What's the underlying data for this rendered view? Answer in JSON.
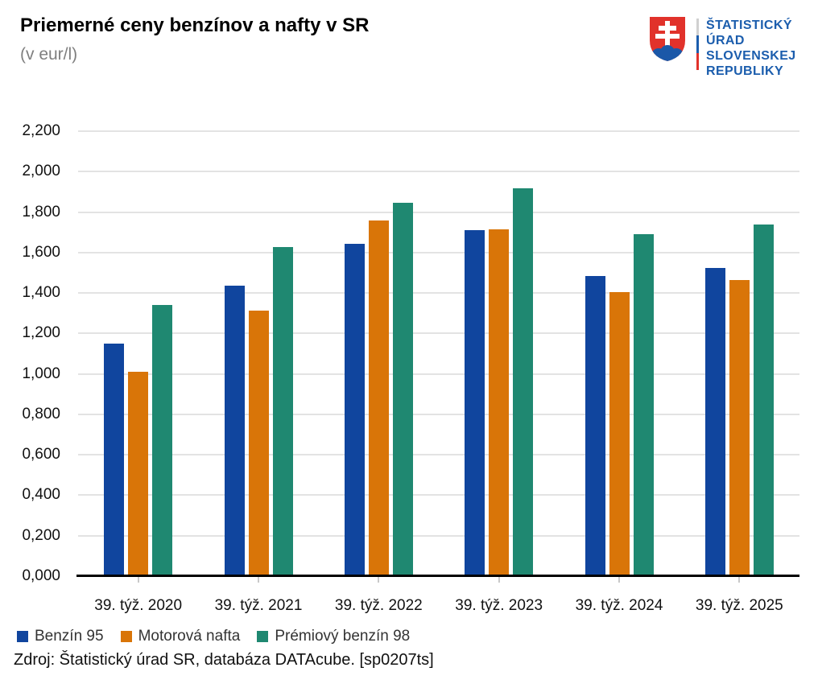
{
  "chart_data": {
    "type": "bar",
    "title": "Priemerné ceny benzínov a nafty v SR",
    "subtitle": "(v eur/l)",
    "categories": [
      "39. týž. 2020",
      "39. týž. 2021",
      "39. týž. 2022",
      "39. týž. 2023",
      "39. týž. 2024",
      "39. týž. 2025"
    ],
    "series": [
      {
        "name": "Benzín 95",
        "color": "#10459e",
        "values": [
          1.141,
          1.428,
          1.634,
          1.702,
          1.475,
          1.516
        ]
      },
      {
        "name": "Motorová nafta",
        "color": "#d97508",
        "values": [
          1.004,
          1.304,
          1.752,
          1.705,
          1.398,
          1.458
        ]
      },
      {
        "name": "Prémiový benzín 98",
        "color": "#1f8871",
        "values": [
          1.332,
          1.62,
          1.838,
          1.91,
          1.682,
          1.729
        ]
      }
    ],
    "ylim": [
      0,
      2.2
    ],
    "ytick_step": 0.2,
    "ytick_labels": [
      "0,000",
      "0,200",
      "0,400",
      "0,600",
      "0,800",
      "1,000",
      "1,200",
      "1,400",
      "1,600",
      "1,800",
      "2,000",
      "2,200"
    ],
    "grid": true,
    "legend_position": "bottom-left"
  },
  "logo": {
    "org_lines": [
      "ŠTATISTICKÝ",
      "ÚRAD",
      "SLOVENSKEJ",
      "REPUBLIKY"
    ],
    "colors": {
      "text": "#1b5dad",
      "shield_red": "#e1322b",
      "shield_blue": "#1b58a8",
      "cross_white": "#ffffff",
      "divider_top": "#d0d0d0",
      "divider_middle": "#1b5dad",
      "divider_bottom": "#e1322b"
    }
  },
  "source": {
    "text": "Zdroj: Štatistický úrad SR, databáza DATAcube. [sp0207ts]"
  }
}
